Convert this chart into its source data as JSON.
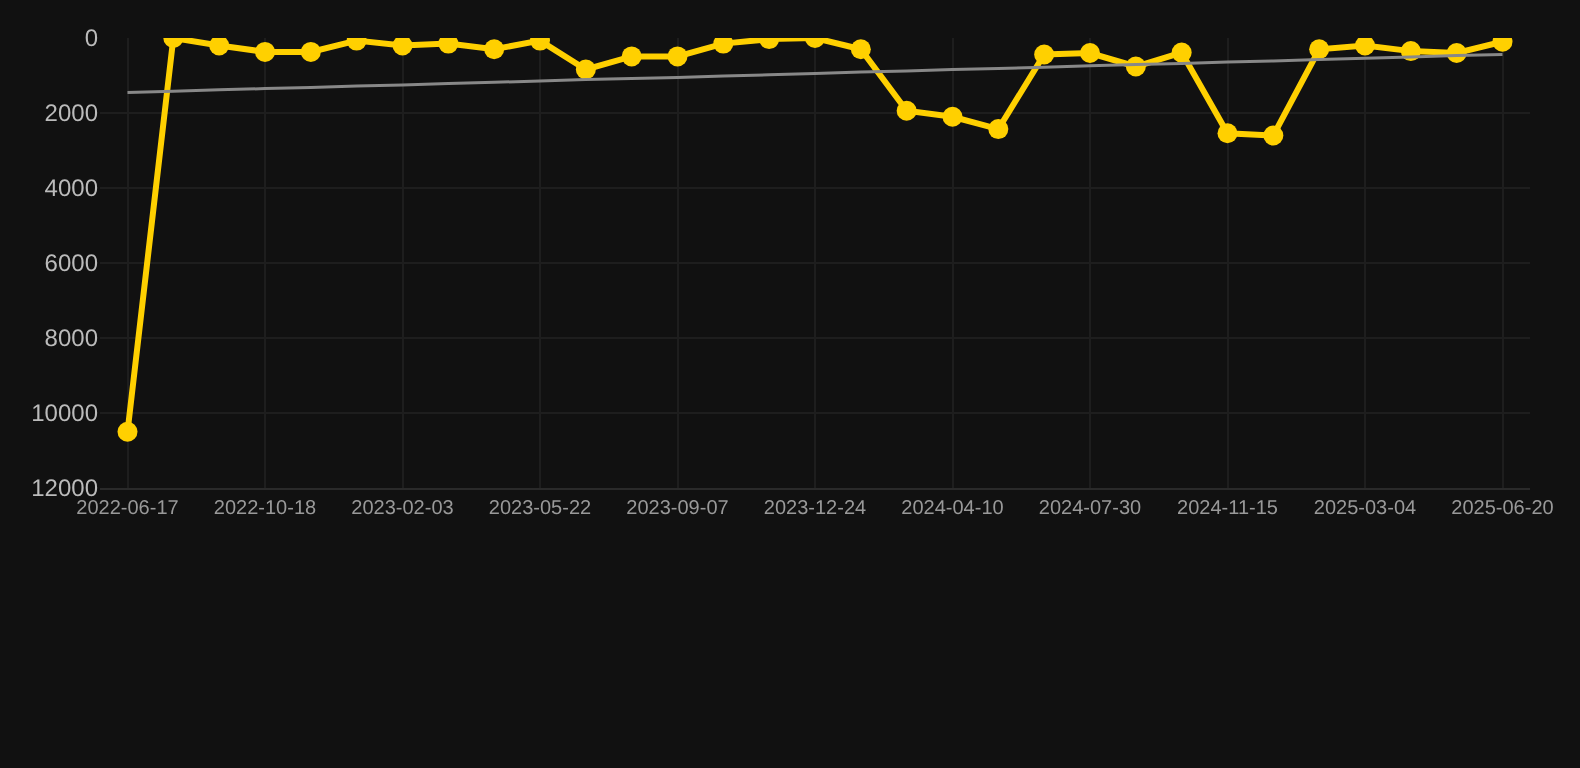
{
  "chart_data": {
    "type": "line",
    "categories": [
      "2022-06-17",
      null,
      null,
      "2022-10-18",
      null,
      null,
      "2023-02-03",
      null,
      null,
      "2023-05-22",
      null,
      null,
      "2023-09-07",
      null,
      null,
      "2023-12-24",
      null,
      null,
      "2024-04-10",
      null,
      null,
      "2024-07-30",
      null,
      null,
      "2024-11-15",
      null,
      null,
      "2025-03-04",
      null,
      null,
      "2025-06-20"
    ],
    "series": [
      {
        "color": "#ffd000",
        "marker": "circle",
        "values": [
          10500,
          0,
          200,
          370,
          370,
          70,
          200,
          150,
          300,
          70,
          840,
          490,
          490,
          150,
          30,
          0,
          300,
          1940,
          2100,
          2430,
          440,
          400,
          760,
          390,
          2540,
          2600,
          300,
          200,
          350,
          400,
          100
        ]
      },
      {
        "type": "line",
        "color": "#888888",
        "marker": "none",
        "values": [
          1450,
          1420,
          1380,
          1350,
          1320,
          1280,
          1250,
          1210,
          1180,
          1150,
          1110,
          1080,
          1050,
          1010,
          980,
          950,
          910,
          880,
          840,
          810,
          780,
          740,
          710,
          680,
          640,
          610,
          570,
          540,
          510,
          470,
          440
        ]
      }
    ],
    "ylim": [
      12000,
      0
    ],
    "yticks": [
      0,
      2000,
      4000,
      6000,
      8000,
      10000,
      12000
    ],
    "grid": true
  }
}
